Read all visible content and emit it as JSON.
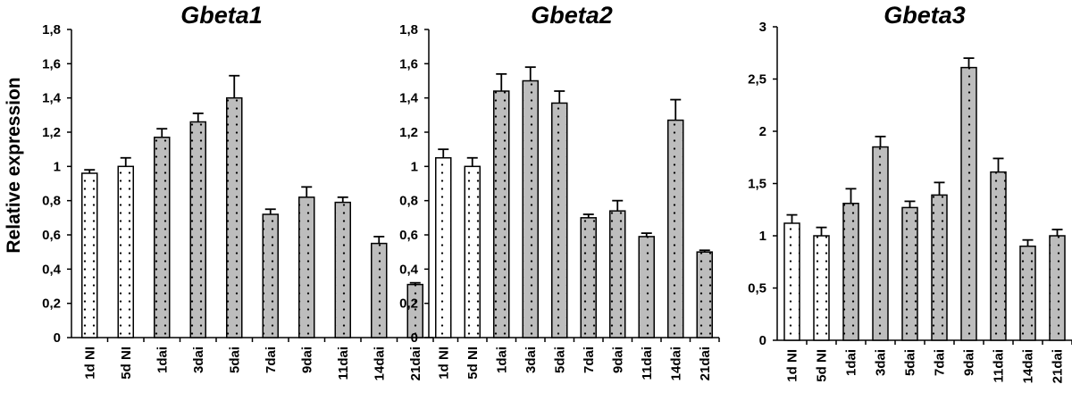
{
  "ylabel": "Relative expression",
  "chart_data": [
    {
      "type": "bar",
      "title": "Gbeta1",
      "ylabel": "Relative expression",
      "categories": [
        "1d NI",
        "5d NI",
        "1dai",
        "3dai",
        "5dai",
        "7dai",
        "9dai",
        "11dai",
        "14dai",
        "21dai"
      ],
      "values": [
        0.96,
        1.0,
        1.17,
        1.26,
        1.4,
        0.72,
        0.82,
        0.79,
        0.55,
        0.31
      ],
      "errors": [
        0.02,
        0.05,
        0.05,
        0.05,
        0.13,
        0.03,
        0.06,
        0.03,
        0.04,
        0.01
      ],
      "ylim": [
        0,
        1.8
      ],
      "yticks": [
        0,
        0.2,
        0.4,
        0.6,
        0.8,
        1,
        1.2,
        1.4,
        1.6,
        1.8
      ],
      "ytick_labels": [
        "0",
        "0,2",
        "0,4",
        "0,6",
        "0,8",
        "1",
        "1,2",
        "1,4",
        "1,6",
        "1,8"
      ],
      "fill_colors": [
        "#ffffff",
        "#ffffff",
        "#bdbdbd",
        "#bdbdbd",
        "#bdbdbd",
        "#bdbdbd",
        "#bdbdbd",
        "#bdbdbd",
        "#bdbdbd",
        "#bdbdbd"
      ],
      "grid": false
    },
    {
      "type": "bar",
      "title": "Gbeta2",
      "categories": [
        "1d NI",
        "5d NI",
        "1dai",
        "3dai",
        "5dai",
        "7dai",
        "9dai",
        "11dai",
        "14dai",
        "21dai"
      ],
      "values": [
        1.05,
        1.0,
        1.44,
        1.5,
        1.37,
        0.7,
        0.74,
        0.59,
        1.27,
        0.5
      ],
      "errors": [
        0.05,
        0.05,
        0.1,
        0.08,
        0.07,
        0.02,
        0.06,
        0.02,
        0.12,
        0.01
      ],
      "ylim": [
        0,
        1.8
      ],
      "yticks": [
        0,
        0.2,
        0.4,
        0.6,
        0.8,
        1,
        1.2,
        1.4,
        1.6,
        1.8
      ],
      "ytick_labels": [
        "0",
        "0,2",
        "0,4",
        "0,6",
        "0,8",
        "1",
        "1,2",
        "1,4",
        "1,6",
        "1,8"
      ],
      "fill_colors": [
        "#ffffff",
        "#ffffff",
        "#bdbdbd",
        "#bdbdbd",
        "#bdbdbd",
        "#bdbdbd",
        "#bdbdbd",
        "#bdbdbd",
        "#bdbdbd",
        "#bdbdbd"
      ],
      "grid": false
    },
    {
      "type": "bar",
      "title": "Gbeta3",
      "categories": [
        "1d NI",
        "5d NI",
        "1dai",
        "3dai",
        "5dai",
        "7dai",
        "9dai",
        "11dai",
        "14dai",
        "21dai"
      ],
      "values": [
        1.12,
        1.0,
        1.31,
        1.85,
        1.27,
        1.39,
        2.61,
        1.61,
        0.9,
        1.0
      ],
      "errors": [
        0.08,
        0.08,
        0.14,
        0.1,
        0.06,
        0.12,
        0.09,
        0.13,
        0.06,
        0.06
      ],
      "ylim": [
        0,
        3
      ],
      "yticks": [
        0,
        0.5,
        1,
        1.5,
        2,
        2.5,
        3
      ],
      "ytick_labels": [
        "0",
        "0,5",
        "1",
        "1,5",
        "2",
        "2,5",
        "3"
      ],
      "fill_colors": [
        "#ffffff",
        "#ffffff",
        "#bdbdbd",
        "#bdbdbd",
        "#bdbdbd",
        "#bdbdbd",
        "#bdbdbd",
        "#bdbdbd",
        "#bdbdbd",
        "#bdbdbd"
      ],
      "grid": false
    }
  ]
}
